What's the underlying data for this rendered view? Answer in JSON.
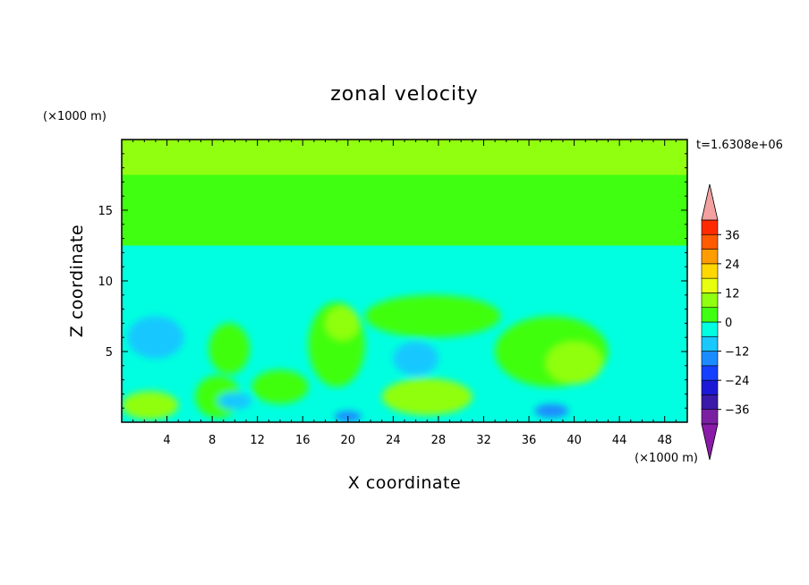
{
  "chart_data": {
    "type": "heatmap",
    "title": "zonal velocity",
    "xlabel": "X coordinate",
    "ylabel": "Z coordinate",
    "x_unit": "(×1000 m)",
    "y_unit": "(×1000 m)",
    "time_label": "t=1.6308e+06",
    "xlim": [
      0,
      50
    ],
    "ylim": [
      0,
      20
    ],
    "x_ticks": [
      4,
      8,
      12,
      16,
      20,
      24,
      28,
      32,
      36,
      40,
      44,
      48
    ],
    "y_ticks": [
      5,
      10,
      15
    ],
    "colorbar": {
      "levels": [
        -42,
        -36,
        -30,
        -24,
        -18,
        -12,
        -6,
        0,
        6,
        12,
        18,
        24,
        30,
        36,
        42
      ],
      "tick_values": [
        -36,
        -24,
        -12,
        0,
        12,
        24,
        36
      ],
      "colors": [
        "#7a1fa2",
        "#3a1aa8",
        "#1a1ad6",
        "#1540ff",
        "#1a8cff",
        "#18c8ff",
        "#00ffe0",
        "#40ff10",
        "#90ff10",
        "#e8ff10",
        "#ffd800",
        "#ff9c00",
        "#ff5a00",
        "#ff2a00"
      ],
      "under_color": "#8a1aa8",
      "over_color": "#f4a0a0",
      "extend": "both"
    },
    "field_bands": [
      {
        "z_range": [
          17.5,
          20
        ],
        "value": 9
      },
      {
        "z_range": [
          15,
          17.5
        ],
        "value": 3
      },
      {
        "z_range": [
          12.5,
          15
        ],
        "value": 1
      },
      {
        "z_range": [
          0,
          12.5
        ],
        "value": -5
      }
    ],
    "field_blobs": [
      {
        "x": 2.5,
        "z": 1.2,
        "rx": 2.5,
        "rz": 1.0,
        "value": 9
      },
      {
        "x": 9.5,
        "z": 5.2,
        "rx": 1.8,
        "rz": 1.8,
        "value": 3
      },
      {
        "x": 8.5,
        "z": 1.8,
        "rx": 2.0,
        "rz": 1.5,
        "value": 3
      },
      {
        "x": 14.0,
        "z": 2.5,
        "rx": 2.5,
        "rz": 1.2,
        "value": 3
      },
      {
        "x": 19.0,
        "z": 5.5,
        "rx": 2.5,
        "rz": 3.0,
        "value": 3
      },
      {
        "x": 19.5,
        "z": 7.0,
        "rx": 1.5,
        "rz": 1.2,
        "value": 9
      },
      {
        "x": 27.0,
        "z": 1.8,
        "rx": 4.0,
        "rz": 1.3,
        "value": 6
      },
      {
        "x": 27.5,
        "z": 7.5,
        "rx": 6.0,
        "rz": 1.5,
        "value": 2
      },
      {
        "x": 38.0,
        "z": 5.0,
        "rx": 5.0,
        "rz": 2.5,
        "value": 4
      },
      {
        "x": 40.0,
        "z": 4.2,
        "rx": 2.5,
        "rz": 1.5,
        "value": 9
      },
      {
        "x": 3.0,
        "z": 6.0,
        "rx": 2.5,
        "rz": 1.5,
        "value": -10
      },
      {
        "x": 26.0,
        "z": 4.5,
        "rx": 2.0,
        "rz": 1.2,
        "value": -10
      },
      {
        "x": 38.0,
        "z": 0.8,
        "rx": 1.5,
        "rz": 0.5,
        "value": -16
      },
      {
        "x": 20.0,
        "z": 0.4,
        "rx": 1.2,
        "rz": 0.4,
        "value": -16
      },
      {
        "x": 10.0,
        "z": 1.5,
        "rx": 1.5,
        "rz": 0.6,
        "value": -8
      }
    ]
  }
}
